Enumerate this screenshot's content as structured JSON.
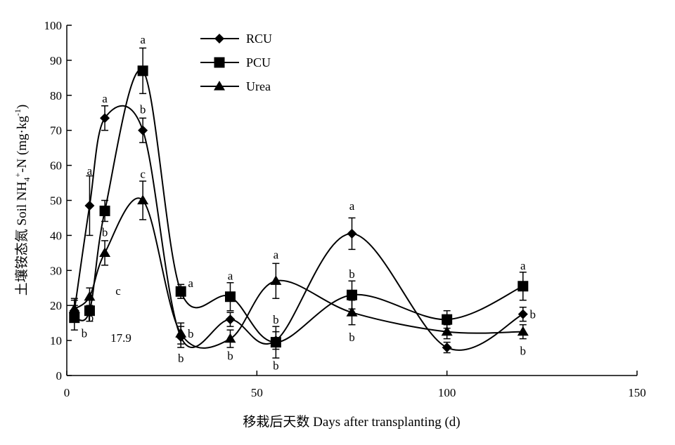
{
  "chart_data": {
    "type": "line",
    "xlabel": "移栽后天数 Days after transplanting (d)",
    "ylabel": "土壤铵态氮 Soil NH4+-N (mg·kg-1)",
    "ylabel_parts": {
      "prefix": "土壤铵态氮 Soil NH",
      "sub": "4",
      "sup": "+",
      "mid": "-N (mg·kg",
      "sup2": "-1",
      "suffix": ")"
    },
    "xlim": [
      0,
      150
    ],
    "ylim": [
      0,
      100
    ],
    "xticks": [
      "0",
      "50",
      "100",
      "150"
    ],
    "yticks": [
      "0",
      "10",
      "20",
      "30",
      "40",
      "50",
      "60",
      "70",
      "80",
      "90",
      "100"
    ],
    "grid": false,
    "legend_position": "top-center",
    "series": [
      {
        "name": "RCU",
        "marker": "diamond",
        "x": [
          2,
          6,
          10,
          20,
          30,
          43,
          55,
          75,
          100,
          120
        ],
        "y": [
          18.5,
          48.5,
          73.5,
          70,
          11,
          16,
          10,
          40.5,
          8,
          17.5
        ],
        "err": [
          3,
          8.5,
          3.5,
          3.5,
          3,
          2,
          2.5,
          4.5,
          1.5,
          2
        ],
        "sig": [
          "",
          "a",
          "a",
          "b",
          "b",
          "",
          "b",
          "a",
          "",
          "b"
        ]
      },
      {
        "name": "PCU",
        "marker": "square",
        "x": [
          2,
          6,
          10,
          20,
          30,
          43,
          55,
          75,
          100,
          120
        ],
        "y": [
          16.5,
          18.5,
          47,
          87,
          24,
          22.5,
          9.5,
          23,
          16,
          25.5
        ],
        "err": [
          3.5,
          3,
          3,
          6.5,
          2,
          4,
          4.5,
          4,
          2.5,
          4
        ],
        "sig": [
          "b",
          "b",
          "b",
          "a",
          "a",
          "a",
          "b",
          "b",
          "",
          "a"
        ]
      },
      {
        "name": "Urea",
        "marker": "triangle",
        "x": [
          2,
          6,
          10,
          20,
          30,
          43,
          55,
          75,
          100,
          120
        ],
        "y": [
          19,
          22.5,
          35,
          50,
          12,
          10.5,
          27,
          18,
          12.5,
          12.5
        ],
        "err": [
          3,
          2.5,
          3.5,
          5.5,
          3,
          2.5,
          5,
          3.5,
          2,
          2
        ],
        "sig": [
          "",
          "c",
          "",
          "c",
          "b",
          "b",
          "a",
          "b",
          "",
          "b"
        ]
      }
    ],
    "annotations": [
      "17.9"
    ]
  }
}
